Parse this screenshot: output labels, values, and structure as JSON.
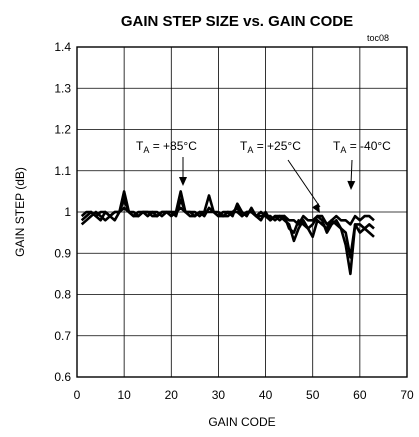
{
  "chart_data": {
    "type": "line",
    "title": "GAIN STEP SIZE vs. GAIN CODE",
    "figure_tag": "toc08",
    "xlabel": "GAIN CODE",
    "ylabel": "GAIN STEP (dB)",
    "xlim": [
      0,
      70
    ],
    "ylim": [
      0.6,
      1.4
    ],
    "xticks": [
      "0",
      "10",
      "20",
      "30",
      "40",
      "50",
      "60",
      "70"
    ],
    "yticks": [
      "0.6",
      "0.7",
      "0.8",
      "0.9",
      "1",
      "1.1",
      "1.2",
      "1.3",
      "1.4"
    ],
    "grid": true,
    "annotations": [
      {
        "prefix": "T",
        "sub": "A",
        "text": " = +85°C"
      },
      {
        "prefix": "T",
        "sub": "A",
        "text": " = +25°C"
      },
      {
        "prefix": "T",
        "sub": "A",
        "text": " = -40°C"
      }
    ],
    "series": [
      {
        "x": [
          1,
          2,
          3,
          4,
          5,
          6,
          7,
          8,
          9,
          10,
          11,
          12,
          13,
          14,
          15,
          16,
          17,
          18,
          19,
          20,
          21,
          22,
          23,
          24,
          25,
          26,
          27,
          28,
          29,
          30,
          31,
          32,
          33,
          34,
          35,
          36,
          37,
          38,
          39,
          40,
          41,
          42,
          43,
          44,
          45,
          46,
          47,
          48,
          49,
          50,
          51,
          52,
          53,
          54,
          55,
          56,
          57,
          58,
          59,
          60,
          61,
          62,
          63
        ],
        "values": [
          0.97,
          0.98,
          0.99,
          1.0,
          0.99,
          0.98,
          0.99,
          1.0,
          1.0,
          1.05,
          1.0,
          0.99,
          0.99,
          1.0,
          1.0,
          0.99,
          0.99,
          1.0,
          1.0,
          0.99,
          1.0,
          1.05,
          1.0,
          0.99,
          0.99,
          1.0,
          1.0,
          1.04,
          1.0,
          0.99,
          0.99,
          1.0,
          0.99,
          1.02,
          1.0,
          0.99,
          1.01,
          0.99,
          0.98,
          1.0,
          0.98,
          0.99,
          0.99,
          0.98,
          0.97,
          0.93,
          0.96,
          0.98,
          0.96,
          0.94,
          0.98,
          0.97,
          0.96,
          0.98,
          0.97,
          0.96,
          0.92,
          0.85,
          0.97,
          0.95,
          0.96,
          0.95,
          0.94
        ]
      },
      {
        "x": [
          1,
          2,
          3,
          4,
          5,
          6,
          7,
          8,
          9,
          10,
          11,
          12,
          13,
          14,
          15,
          16,
          17,
          18,
          19,
          20,
          21,
          22,
          23,
          24,
          25,
          26,
          27,
          28,
          29,
          30,
          31,
          32,
          33,
          34,
          35,
          36,
          37,
          38,
          39,
          40,
          41,
          42,
          43,
          44,
          45,
          46,
          47,
          48,
          49,
          50,
          51,
          52,
          53,
          54,
          55,
          56,
          57,
          58,
          59,
          60,
          61,
          62,
          63
        ],
        "values": [
          0.98,
          0.99,
          1.0,
          0.99,
          0.98,
          1.0,
          0.99,
          0.98,
          1.0,
          1.03,
          1.0,
          0.99,
          1.0,
          1.0,
          0.99,
          1.0,
          1.0,
          0.99,
          1.0,
          1.0,
          0.99,
          1.03,
          1.0,
          1.0,
          0.99,
          1.0,
          0.99,
          1.01,
          1.0,
          1.0,
          0.99,
          0.99,
          1.0,
          1.01,
          0.99,
          1.0,
          1.0,
          0.99,
          0.99,
          0.99,
          0.98,
          0.99,
          0.98,
          0.99,
          0.96,
          0.95,
          0.98,
          0.97,
          0.96,
          0.97,
          0.99,
          0.98,
          0.95,
          0.97,
          0.98,
          0.96,
          0.95,
          0.89,
          0.97,
          0.97,
          0.96,
          0.97,
          0.96
        ]
      },
      {
        "x": [
          1,
          2,
          3,
          4,
          5,
          6,
          7,
          8,
          9,
          10,
          11,
          12,
          13,
          14,
          15,
          16,
          17,
          18,
          19,
          20,
          21,
          22,
          23,
          24,
          25,
          26,
          27,
          28,
          29,
          30,
          31,
          32,
          33,
          34,
          35,
          36,
          37,
          38,
          39,
          40,
          41,
          42,
          43,
          44,
          45,
          46,
          47,
          48,
          49,
          50,
          51,
          52,
          53,
          54,
          55,
          56,
          57,
          58,
          59,
          60,
          61,
          62,
          63
        ],
        "values": [
          0.99,
          1.0,
          1.0,
          0.99,
          1.0,
          1.0,
          0.99,
          1.0,
          1.0,
          1.01,
          1.0,
          1.0,
          0.99,
          1.0,
          1.0,
          1.0,
          0.99,
          1.0,
          1.0,
          1.0,
          1.0,
          1.01,
          1.0,
          1.0,
          1.0,
          0.99,
          1.0,
          1.0,
          1.0,
          0.99,
          1.0,
          1.0,
          1.0,
          1.0,
          0.99,
          1.0,
          1.0,
          0.99,
          1.0,
          0.99,
          0.99,
          0.98,
          0.99,
          0.99,
          0.98,
          0.98,
          0.97,
          0.99,
          0.98,
          0.98,
          0.99,
          0.99,
          0.97,
          0.98,
          0.99,
          0.98,
          0.98,
          0.97,
          0.99,
          0.98,
          0.99,
          0.99,
          0.98
        ]
      }
    ]
  }
}
